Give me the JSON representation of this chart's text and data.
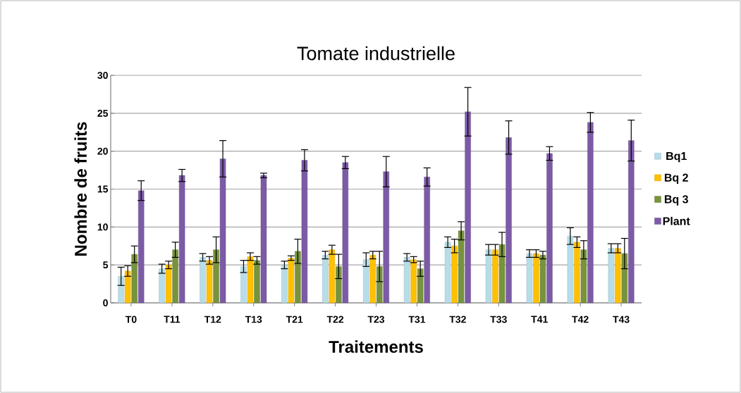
{
  "chart_data": {
    "type": "bar",
    "title": "Tomate industrielle",
    "xlabel": "Traitements",
    "ylabel": "Nombre de fruits",
    "categories": [
      "T0",
      "T11",
      "T12",
      "T13",
      "T21",
      "T22",
      "T23",
      "T31",
      "T32",
      "T33",
      "T41",
      "T42",
      "T43"
    ],
    "series": [
      {
        "name": "Bq1",
        "color": "#b7dde8",
        "values": [
          3.5,
          4.5,
          6.0,
          4.8,
          5.0,
          6.3,
          5.7,
          6.0,
          8.0,
          7.0,
          6.5,
          8.8,
          7.2
        ],
        "errors": [
          1.2,
          0.6,
          0.5,
          0.8,
          0.5,
          0.5,
          0.9,
          0.5,
          0.7,
          0.7,
          0.5,
          1.1,
          0.6
        ]
      },
      {
        "name": "Bq 2",
        "color": "#ffc000",
        "values": [
          4.2,
          5.0,
          5.6,
          6.1,
          5.9,
          7.0,
          6.3,
          5.7,
          7.5,
          7.0,
          6.5,
          8.0,
          7.2
        ],
        "errors": [
          0.7,
          0.5,
          0.5,
          0.5,
          0.3,
          0.6,
          0.5,
          0.4,
          0.9,
          0.7,
          0.5,
          0.7,
          0.6
        ]
      },
      {
        "name": "Bq 3",
        "color": "#77933c",
        "values": [
          6.4,
          7.0,
          7.0,
          5.6,
          6.8,
          4.8,
          4.8,
          4.5,
          9.5,
          7.7,
          6.3,
          7.0,
          6.5
        ],
        "errors": [
          1.1,
          1.0,
          1.7,
          0.5,
          1.6,
          1.6,
          2.0,
          1.0,
          1.2,
          1.6,
          0.5,
          1.2,
          2.0
        ]
      },
      {
        "name": "Plant",
        "color": "#7c5ba6",
        "values": [
          14.8,
          16.8,
          19.0,
          16.8,
          18.8,
          18.5,
          17.3,
          16.6,
          25.2,
          21.8,
          19.7,
          23.8,
          21.4
        ],
        "errors": [
          1.3,
          0.8,
          2.4,
          0.3,
          1.4,
          0.8,
          2.0,
          1.2,
          3.2,
          2.2,
          0.9,
          1.3,
          2.7
        ]
      }
    ],
    "ylim": [
      0,
      30
    ],
    "yticks": [
      0,
      5,
      10,
      15,
      20,
      25,
      30
    ],
    "grid": "y",
    "legend": "right"
  }
}
